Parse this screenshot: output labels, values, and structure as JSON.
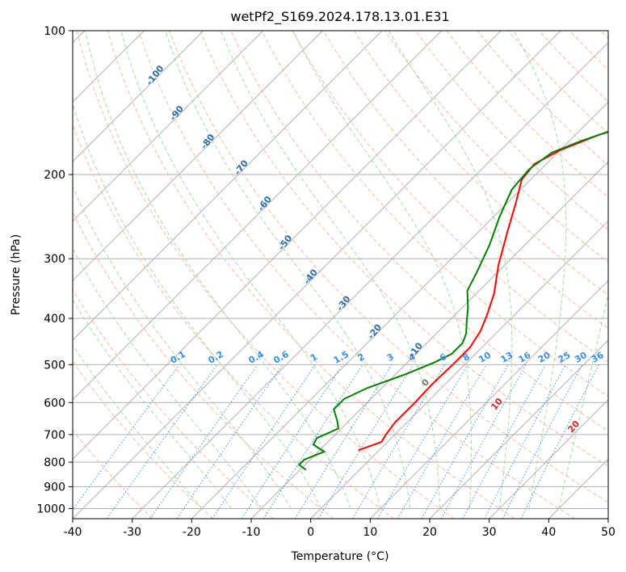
{
  "chart_data": {
    "type": "line",
    "title": "wetPf2_S169.2024.178.13.01.E31",
    "xlabel": "Temperature (°C)",
    "ylabel": "Pressure (hPa)",
    "xlim": [
      -40,
      50
    ],
    "ylim": [
      1050,
      100
    ],
    "y_scale": "log",
    "grid": true,
    "x_ticks": [
      -40,
      -30,
      -20,
      -10,
      0,
      10,
      20,
      30,
      40,
      50
    ],
    "y_ticks": [
      100,
      200,
      300,
      400,
      500,
      600,
      700,
      800,
      900,
      1000
    ],
    "skew_isotherm_labels": [
      -100,
      -90,
      -80,
      -70,
      -60,
      -50,
      -40,
      -30,
      -20,
      -10
    ],
    "mixing_ratio_labels": [
      "0.1",
      "0.2",
      "0.4",
      "0.6",
      "1",
      "1.5",
      "2",
      "3",
      "4",
      "6",
      "8",
      "10",
      "13",
      "16",
      "20",
      "25",
      "30",
      "36"
    ],
    "dry_adiabat_labels": [
      0,
      10,
      20,
      30,
      40
    ],
    "series": [
      {
        "color": "#ff0000",
        "points": [
          [
            -3.5,
            755
          ],
          [
            -1,
            725
          ],
          [
            -1.5,
            700
          ],
          [
            -2,
            660
          ],
          [
            -2,
            600
          ],
          [
            -2.2,
            550
          ],
          [
            -2,
            500
          ],
          [
            -2,
            460
          ],
          [
            -3,
            425
          ],
          [
            -4.5,
            395
          ],
          [
            -7,
            355
          ],
          [
            -11,
            310
          ],
          [
            -15,
            265
          ],
          [
            -18.5,
            230
          ],
          [
            -21.5,
            205
          ],
          [
            -22,
            190
          ],
          [
            -20,
            178
          ],
          [
            -16,
            165
          ],
          [
            -8,
            150
          ],
          [
            2,
            137
          ],
          [
            5.5,
            127
          ],
          [
            6.8,
            119
          ],
          [
            6.5,
            110
          ],
          [
            6,
            100
          ]
        ]
      },
      {
        "color": "#008000",
        "points": [
          [
            -9,
            830
          ],
          [
            -11,
            810
          ],
          [
            -11,
            790
          ],
          [
            -9,
            760
          ],
          [
            -12,
            735
          ],
          [
            -12.5,
            712
          ],
          [
            -10.5,
            680
          ],
          [
            -12,
            655
          ],
          [
            -14.5,
            620
          ],
          [
            -14.5,
            590
          ],
          [
            -12.5,
            560
          ],
          [
            -8.5,
            525
          ],
          [
            -5.5,
            495
          ],
          [
            -4,
            475
          ],
          [
            -4,
            450
          ],
          [
            -5,
            430
          ],
          [
            -7,
            405
          ],
          [
            -9,
            380
          ],
          [
            -12,
            350
          ],
          [
            -13.5,
            320
          ],
          [
            -16,
            280
          ],
          [
            -19,
            245
          ],
          [
            -21.5,
            215
          ],
          [
            -22,
            195
          ],
          [
            -21,
            180
          ],
          [
            -18,
            170
          ],
          [
            -13,
            158
          ],
          [
            -6,
            146
          ],
          [
            -3,
            135
          ],
          [
            -2,
            123
          ],
          [
            0,
            112
          ],
          [
            2.5,
            100
          ]
        ]
      }
    ]
  }
}
